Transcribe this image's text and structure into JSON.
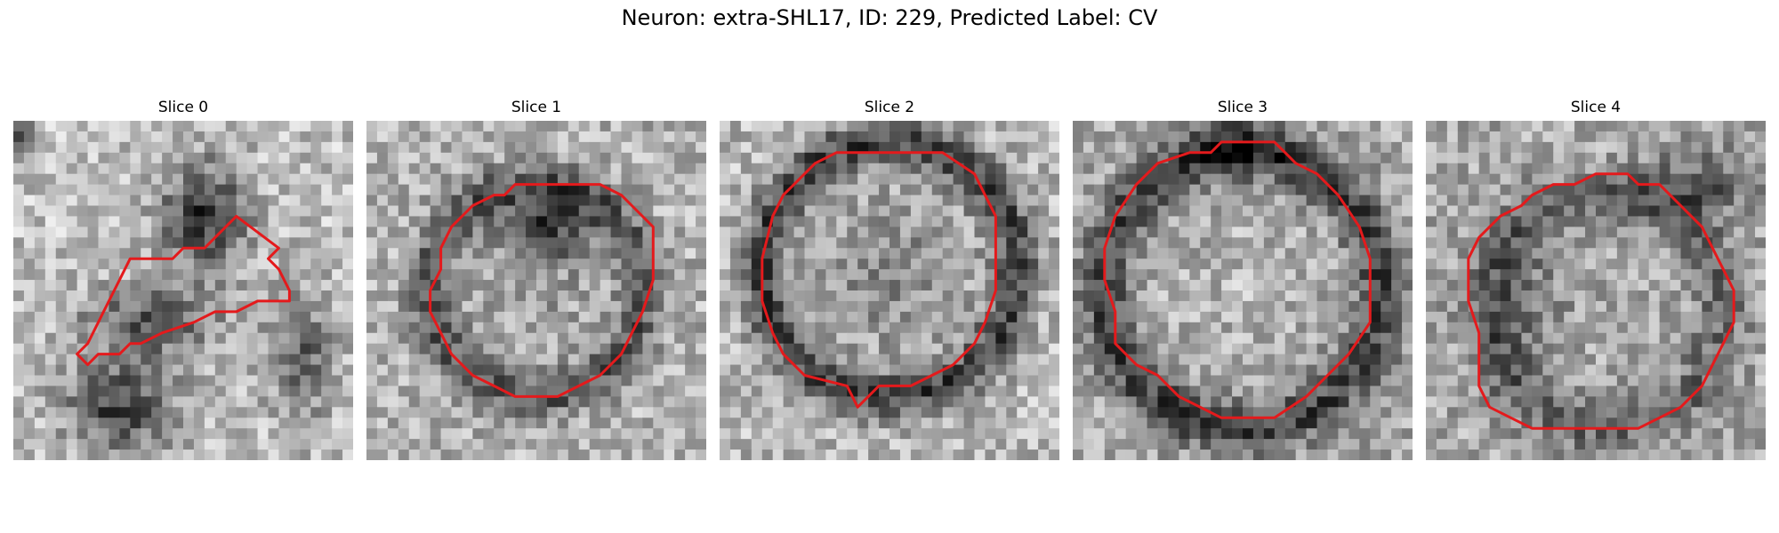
{
  "figure": {
    "title": "Neuron: extra-SHL17, ID: 229, Predicted Label: CV"
  },
  "panels": [
    {
      "title": "Slice 0"
    },
    {
      "title": "Slice 1"
    },
    {
      "title": "Slice 2"
    },
    {
      "title": "Slice 3"
    },
    {
      "title": "Slice 4"
    }
  ],
  "colors": {
    "contour": "#e41a1c",
    "background": "#ffffff"
  }
}
